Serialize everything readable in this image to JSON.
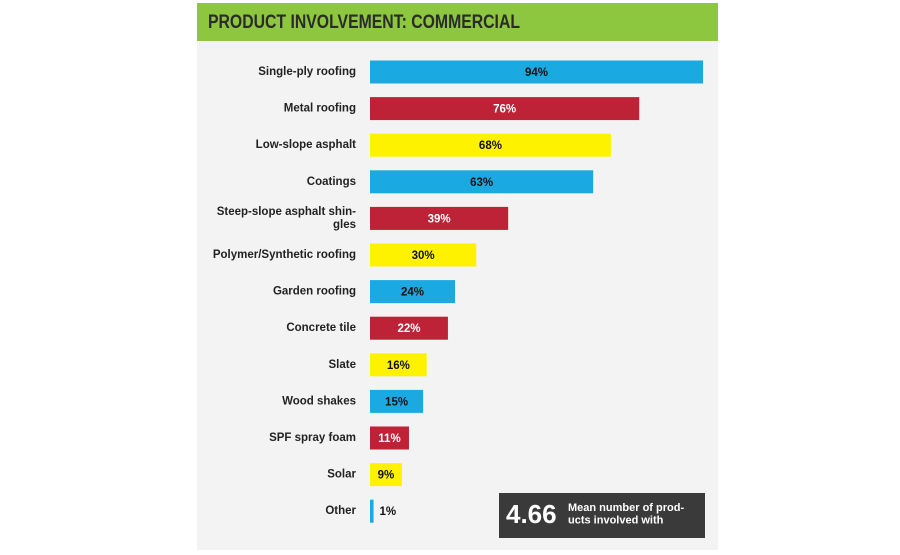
{
  "chart_data": {
    "type": "bar",
    "orientation": "horizontal",
    "title": "PRODUCT INVOLVEMENT: COMMERCIAL",
    "categories": [
      "Single-ply roofing",
      "Metal roofing",
      "Low-slope asphalt",
      "Coatings",
      "Steep-slope asphalt shin-\ngles",
      "Polymer/Synthetic roofing",
      "Garden roofing",
      "Concrete tile",
      "Slate",
      "Wood shakes",
      "SPF spray foam",
      "Solar",
      "Other"
    ],
    "values": [
      94,
      76,
      68,
      63,
      39,
      30,
      24,
      22,
      16,
      15,
      11,
      9,
      1
    ],
    "value_labels": [
      "94%",
      "76%",
      "68%",
      "63%",
      "39%",
      "30%",
      "24%",
      "22%",
      "16%",
      "15%",
      "11%",
      "9%",
      "1%"
    ],
    "colors": [
      "#1ba9e1",
      "#be2236",
      "#fff200",
      "#1ba9e1",
      "#be2236",
      "#fff200",
      "#1ba9e1",
      "#be2236",
      "#fff200",
      "#1ba9e1",
      "#be2236",
      "#fff200",
      "#1ba9e1"
    ],
    "annotation": {
      "number": "4.66",
      "text": "Mean number of prod-\nucts involved with"
    }
  }
}
